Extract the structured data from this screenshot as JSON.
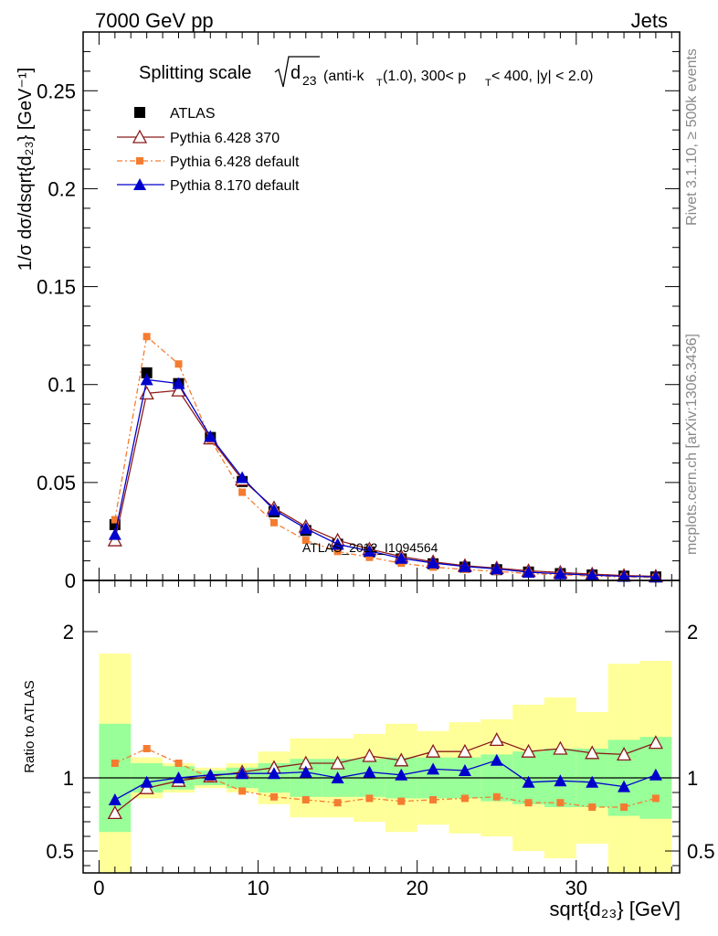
{
  "header": {
    "left": "7000 GeV pp",
    "right": "Jets"
  },
  "title": {
    "prefix": "Splitting scale",
    "sqrt_body": "d",
    "sqrt_sub": "23",
    "sel1": "(anti-k",
    "sel1_sub": "T",
    "sel2": "(1.0), 300< p",
    "sel2_sub": "T",
    "sel3": " < 400, |y| < 2.0)"
  },
  "side_notes": {
    "rivet": "Rivet 3.1.10, ≥ 500k events",
    "mcplots": "mcplots.cern.ch [arXiv:1306.3436]"
  },
  "watermark": "ATLAS_2012_I1094564",
  "axes": {
    "main_ylabel": "1/σ dσ/dsqrt{d₂₃} [GeV⁻¹]",
    "ratio_ylabel": "Ratio to ATLAS",
    "xlabel": "sqrt{d₂₃} [GeV]"
  },
  "chart_data": [
    {
      "type": "line",
      "panel": "main",
      "x": [
        1,
        3,
        5,
        7,
        9,
        11,
        13,
        15,
        17,
        19,
        21,
        23,
        25,
        27,
        29,
        31,
        33,
        35
      ],
      "xlim": [
        -1,
        36.5
      ],
      "ylim": [
        0,
        0.28
      ],
      "xticks": [
        0,
        10,
        20,
        30
      ],
      "yticks": [
        0,
        0.05,
        0.1,
        0.15,
        0.2,
        0.25
      ],
      "ytick_labels": [
        "0",
        "0.05",
        "0.1",
        "0.15",
        "0.2",
        "0.25"
      ],
      "legend_position": "top-left",
      "series": [
        {
          "name": "ATLAS",
          "color": "#000000",
          "marker": "square",
          "values": [
            0.0285,
            0.106,
            0.1005,
            0.073,
            0.0505,
            0.035,
            0.0255,
            0.0185,
            0.0145,
            0.011,
            0.0085,
            0.0068,
            0.0055,
            0.0043,
            0.0035,
            0.0028,
            0.0022,
            0.0018
          ]
        },
        {
          "name": "Pythia 6.428 370",
          "color": "#8b1a1a",
          "marker": "open-triangle",
          "values": [
            0.0205,
            0.0955,
            0.097,
            0.0725,
            0.0515,
            0.037,
            0.0275,
            0.0205,
            0.016,
            0.0122,
            0.0095,
            0.0075,
            0.0063,
            0.0049,
            0.0041,
            0.0032,
            0.0025,
            0.0021
          ]
        },
        {
          "name": "Pythia 6.428 default",
          "color": "#f47c30",
          "marker": "filled-square-small",
          "dashed": true,
          "values": [
            0.031,
            0.1245,
            0.1105,
            0.072,
            0.045,
            0.0295,
            0.0205,
            0.0148,
            0.0118,
            0.0088,
            0.0068,
            0.0056,
            0.0046,
            0.0035,
            0.0029,
            0.0022,
            0.0018,
            0.0015
          ]
        },
        {
          "name": "Pythia 8.170 default",
          "color": "#0000cc",
          "marker": "filled-triangle",
          "values": [
            0.0235,
            0.1025,
            0.1005,
            0.0735,
            0.0525,
            0.036,
            0.0265,
            0.0185,
            0.015,
            0.0113,
            0.0089,
            0.0071,
            0.0059,
            0.0042,
            0.0034,
            0.0027,
            0.0021,
            0.0018
          ]
        }
      ]
    },
    {
      "type": "line",
      "panel": "ratio",
      "x": [
        1,
        3,
        5,
        7,
        9,
        11,
        13,
        15,
        17,
        19,
        21,
        23,
        25,
        27,
        29,
        31,
        33,
        35
      ],
      "bin_edges": [
        0,
        2,
        4,
        6,
        8,
        10,
        12,
        14,
        16,
        18,
        20,
        22,
        24,
        26,
        28,
        30,
        32,
        34,
        36
      ],
      "xlim": [
        -1,
        36.5
      ],
      "ylim": [
        0.35,
        2.35
      ],
      "yticks": [
        0.5,
        1,
        2
      ],
      "ytick_labels": [
        "0.5",
        "1",
        "2"
      ],
      "xtick_labels": [
        "0",
        "10",
        "20",
        "30"
      ],
      "bands": {
        "stat_green_lower": [
          0.63,
          0.9,
          0.92,
          0.95,
          0.93,
          0.9,
          0.87,
          0.87,
          0.87,
          0.86,
          0.86,
          0.86,
          0.84,
          0.82,
          0.8,
          0.8,
          0.74,
          0.72
        ],
        "stat_green_upper": [
          1.37,
          1.1,
          1.08,
          1.05,
          1.07,
          1.1,
          1.13,
          1.13,
          1.13,
          1.14,
          1.14,
          1.14,
          1.16,
          1.18,
          1.2,
          1.2,
          1.26,
          1.28
        ],
        "total_yellow_lower": [
          0.35,
          0.86,
          0.9,
          0.93,
          0.9,
          0.82,
          0.73,
          0.73,
          0.7,
          0.63,
          0.68,
          0.62,
          0.6,
          0.5,
          0.45,
          0.55,
          0.35,
          0.35
        ],
        "total_yellow_upper": [
          1.85,
          1.14,
          1.1,
          1.07,
          1.1,
          1.18,
          1.27,
          1.27,
          1.3,
          1.37,
          1.32,
          1.38,
          1.4,
          1.5,
          1.55,
          1.45,
          1.78,
          1.8
        ],
        "green_color": "#99ff99",
        "yellow_color": "#ffff99"
      },
      "series": [
        {
          "name": "Pythia 6.428 370",
          "color": "#8b1a1a",
          "marker": "open-triangle",
          "values": [
            0.76,
            0.93,
            0.98,
            1.01,
            1.04,
            1.07,
            1.1,
            1.1,
            1.15,
            1.12,
            1.18,
            1.18,
            1.26,
            1.18,
            1.2,
            1.17,
            1.16,
            1.24
          ]
        },
        {
          "name": "Pythia 6.428 default",
          "color": "#f47c30",
          "marker": "filled-square-small",
          "dashed": true,
          "values": [
            1.1,
            1.2,
            1.1,
            1.0,
            0.91,
            0.87,
            0.85,
            0.83,
            0.86,
            0.84,
            0.85,
            0.86,
            0.87,
            0.83,
            0.83,
            0.8,
            0.8,
            0.86
          ]
        },
        {
          "name": "Pythia 8.170 default",
          "color": "#0000cc",
          "marker": "filled-triangle",
          "values": [
            0.85,
            0.97,
            1.0,
            1.02,
            1.03,
            1.03,
            1.04,
            1.0,
            1.04,
            1.02,
            1.06,
            1.05,
            1.12,
            0.97,
            0.98,
            0.97,
            0.94,
            1.02
          ]
        }
      ]
    }
  ]
}
